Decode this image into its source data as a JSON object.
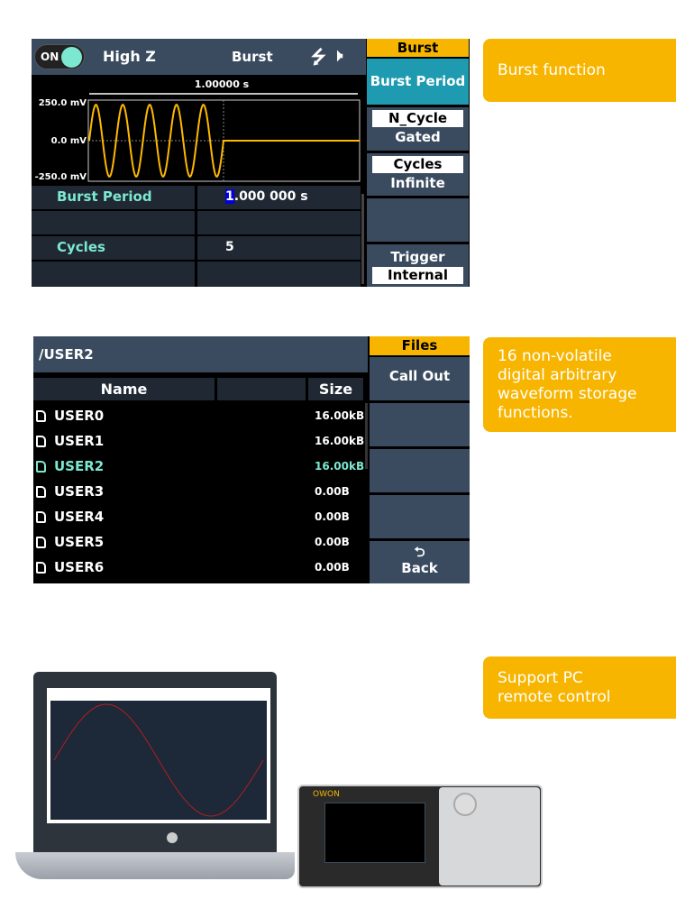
{
  "burst_screen": {
    "output_toggle": "ON",
    "load": "High Z",
    "mode": "Burst",
    "icons": [
      "usb-icon",
      "speaker-icon"
    ],
    "waveform": {
      "period_label": "1.00000 s",
      "y_labels": [
        "250.0 mV",
        "0.0 mV",
        "-250.0 mV"
      ],
      "cycles_shown": 5,
      "color": "#ffb800"
    },
    "params": [
      {
        "label": "Burst Period",
        "value_cursor": "1",
        "value_rest": ".000 000 s"
      },
      {
        "label": "",
        "value": ""
      },
      {
        "label": "Cycles",
        "value": "5"
      },
      {
        "label": "",
        "value": ""
      }
    ],
    "menu": {
      "title": "Burst",
      "items": [
        {
          "label": "Burst Period"
        },
        {
          "box": "N_Cycle",
          "label": "Gated"
        },
        {
          "box": "Cycles",
          "label": "Infinite"
        },
        {
          "label": ""
        },
        {
          "label": "Trigger",
          "box": "Internal"
        }
      ]
    }
  },
  "files_screen": {
    "path": "/USER2",
    "columns": [
      "Name",
      "",
      "Size"
    ],
    "files": [
      {
        "name": "USER0",
        "size": "16.00kB"
      },
      {
        "name": "USER1",
        "size": "16.00kB"
      },
      {
        "name": "USER2",
        "size": "16.00kB",
        "selected": true
      },
      {
        "name": "USER3",
        "size": "0.00B"
      },
      {
        "name": "USER4",
        "size": "0.00B"
      },
      {
        "name": "USER5",
        "size": "0.00B"
      },
      {
        "name": "USER6",
        "size": "0.00B"
      }
    ],
    "menu": {
      "title": "Files",
      "items": [
        "Call Out",
        "",
        "",
        "",
        "Back"
      ]
    }
  },
  "callouts": [
    "Burst  function",
    "16 non-volatile digital arbitrary waveform storage functions.",
    "Support PC remote control"
  ],
  "photo": {
    "laptop_logo": "hp",
    "device_logo": "owon",
    "colors": {
      "accent": "#f7b500",
      "panel": "#3a4b5f",
      "teal": "#7de8d2"
    }
  }
}
